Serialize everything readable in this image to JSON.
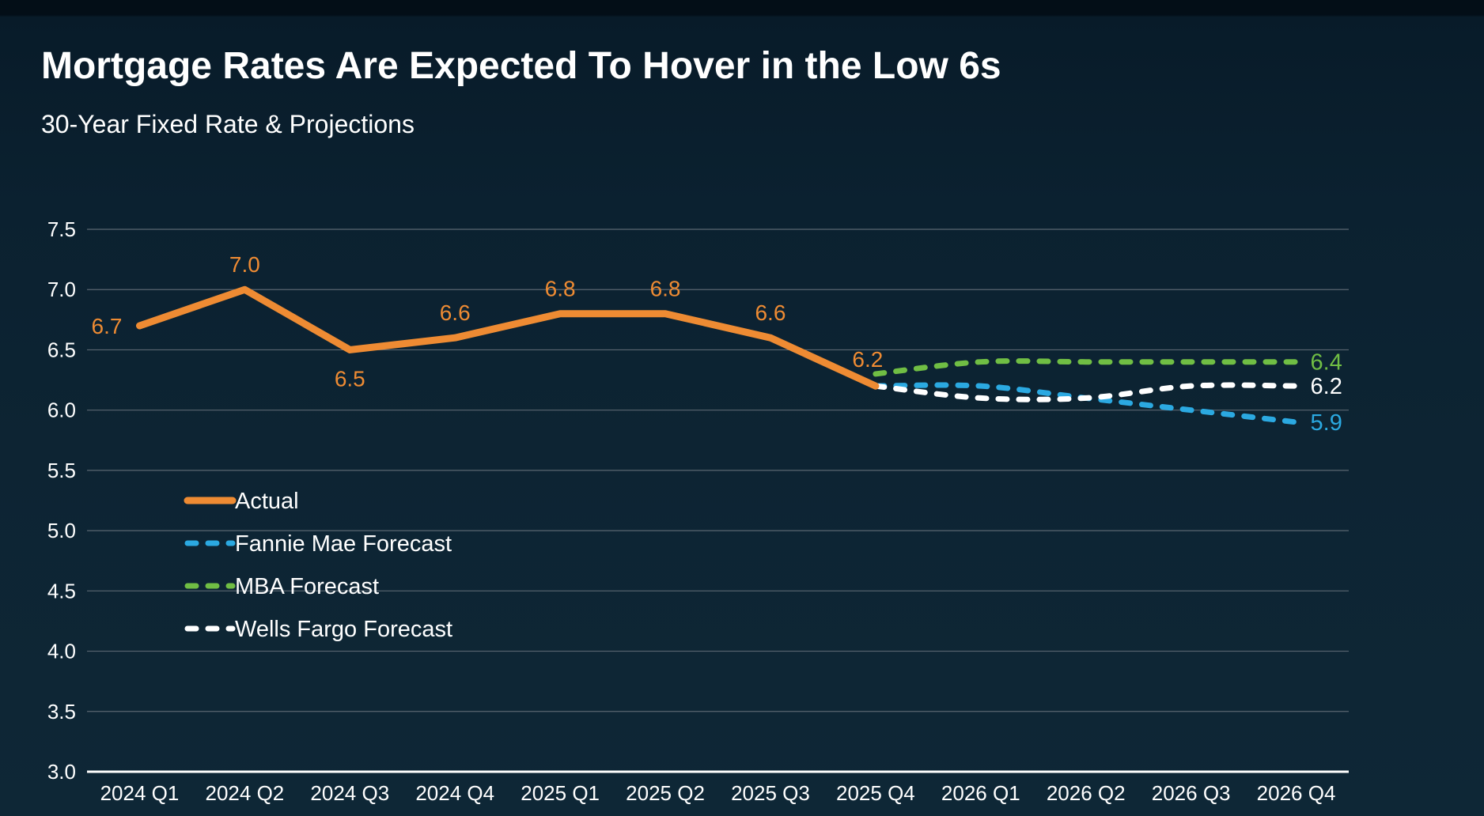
{
  "header": {
    "title": "Mortgage Rates Are Expected To Hover in the Low 6s",
    "subtitle": "30-Year Fixed Rate & Projections"
  },
  "colors": {
    "background": "#0d2433",
    "actual": "#EE8B33",
    "fannie_mae": "#2BA9E1",
    "mba": "#70BE44",
    "wells_fargo": "#FFFFFF",
    "gridline": "#5A6671",
    "axis_line": "#FFFFFF",
    "text": "#FFFFFF"
  },
  "chart_data": {
    "type": "line",
    "title": "Mortgage Rates Are Expected To Hover in the Low 6s",
    "subtitle": "30-Year Fixed Rate & Projections",
    "categories": [
      "2024 Q1",
      "2024 Q2",
      "2024 Q3",
      "2024 Q4",
      "2025 Q1",
      "2025 Q2",
      "2025 Q3",
      "2025 Q4",
      "2026 Q1",
      "2026 Q2",
      "2026 Q3",
      "2026 Q4"
    ],
    "y_axis": {
      "min": 3.0,
      "max": 7.5,
      "step": 0.5,
      "grid": true
    },
    "legend_position": "inside-left",
    "series": [
      {
        "name": "Actual",
        "color": "#EE8B33",
        "style": "solid",
        "values": [
          6.7,
          7.0,
          6.5,
          6.6,
          6.8,
          6.8,
          6.6,
          6.2,
          null,
          null,
          null,
          null
        ],
        "data_labels": [
          "6.7",
          "7.0",
          "6.5",
          "6.6",
          "6.8",
          "6.8",
          "6.6",
          "6.2"
        ],
        "data_label_placements": [
          "left",
          "above",
          "below",
          "above",
          "above",
          "above",
          "above",
          "above"
        ],
        "end_label": ""
      },
      {
        "name": "Fannie Mae Forecast",
        "color": "#2BA9E1",
        "style": "dashed",
        "values": [
          null,
          null,
          null,
          null,
          null,
          null,
          null,
          6.2,
          6.2,
          6.1,
          6.0,
          5.9
        ],
        "data_labels": [],
        "data_label_placements": [],
        "end_label": "5.9"
      },
      {
        "name": "MBA Forecast",
        "color": "#70BE44",
        "style": "dashed",
        "values": [
          null,
          null,
          null,
          null,
          null,
          null,
          null,
          6.3,
          6.4,
          6.4,
          6.4,
          6.4
        ],
        "data_labels": [],
        "data_label_placements": [],
        "end_label": "6.4"
      },
      {
        "name": "Wells Fargo Forecast",
        "color": "#FFFFFF",
        "style": "dashed",
        "values": [
          null,
          null,
          null,
          null,
          null,
          null,
          null,
          6.2,
          6.1,
          6.1,
          6.2,
          6.2
        ],
        "data_labels": [],
        "data_label_placements": [],
        "end_label": "6.2"
      }
    ]
  }
}
